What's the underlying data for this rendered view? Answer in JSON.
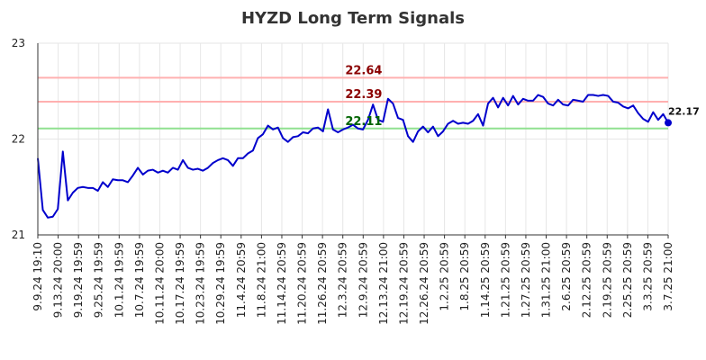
{
  "chart_data": {
    "type": "line",
    "title": "HYZD Long Term Signals",
    "xlabel": "",
    "ylabel": "",
    "ylim": [
      21,
      23
    ],
    "y_ticks": [
      "21",
      "22",
      "23"
    ],
    "x_tick_labels": [
      "9.9.24 19:10",
      "9.13.24 20:00",
      "9.19.24 19:59",
      "9.25.24 19:59",
      "10.1.24 19:59",
      "10.7.24 19:59",
      "10.11.24 20:00",
      "10.17.24 19:59",
      "10.23.24 19:59",
      "10.29.24 19:59",
      "11.4.24 20:59",
      "11.8.24 21:00",
      "11.14.24 20:59",
      "11.20.24 20:59",
      "11.26.24 20:59",
      "12.3.24 20:59",
      "12.9.24 20:59",
      "12.13.24 21:00",
      "12.19.24 20:59",
      "12.26.24 20:59",
      "1.2.25 20:59",
      "1.8.25 20:59",
      "1.14.25 20:59",
      "1.21.25 20:59",
      "1.27.25 20:59",
      "1.31.25 21:00",
      "2.6.25 20:59",
      "2.12.25 20:59",
      "2.19.25 20:59",
      "2.25.25 20:59",
      "3.3.25 20:59",
      "3.7.25 21:00"
    ],
    "grid": true,
    "line_color": "#0000cc",
    "series": [
      {
        "values": [
          21.8,
          21.26,
          21.18,
          21.19,
          21.27,
          21.87,
          21.36,
          21.44,
          21.49,
          21.5,
          21.49,
          21.49,
          21.46,
          21.55,
          21.5,
          21.58,
          21.57,
          21.57,
          21.55,
          21.62,
          21.7,
          21.63,
          21.67,
          21.68,
          21.65,
          21.67,
          21.65,
          21.7,
          21.68,
          21.78,
          21.7,
          21.68,
          21.69,
          21.67,
          21.7,
          21.75,
          21.78,
          21.8,
          21.78,
          21.72,
          21.8,
          21.8,
          21.85,
          21.88,
          22.01,
          22.05,
          22.14,
          22.1,
          22.12,
          22.01,
          21.97,
          22.02,
          22.03,
          22.07,
          22.06,
          22.11,
          22.12,
          22.08,
          22.31,
          22.1,
          22.07,
          22.1,
          22.12,
          22.15,
          22.11,
          22.1,
          22.2,
          22.36,
          22.2,
          22.18,
          22.42,
          22.37,
          22.22,
          22.2,
          22.03,
          21.97,
          22.08,
          22.13,
          22.07,
          22.13,
          22.03,
          22.08,
          22.16,
          22.19,
          22.16,
          22.17,
          22.16,
          22.19,
          22.26,
          22.14,
          22.37,
          22.43,
          22.33,
          22.43,
          22.35,
          22.45,
          22.36,
          22.42,
          22.4,
          22.4,
          22.46,
          22.44,
          22.37,
          22.35,
          22.41,
          22.36,
          22.35,
          22.41,
          22.4,
          22.39,
          22.46,
          22.46,
          22.45,
          22.46,
          22.45,
          22.39,
          22.38,
          22.34,
          22.32,
          22.35,
          22.27,
          22.21,
          22.18,
          22.28,
          22.2,
          22.26,
          22.17
        ]
      }
    ],
    "reference_lines": [
      {
        "value": 22.64,
        "label": "22.64",
        "line_color": "#ffb0b0",
        "label_color": "#8b0000"
      },
      {
        "value": 22.39,
        "label": "22.39",
        "line_color": "#ffb0b0",
        "label_color": "#8b0000"
      },
      {
        "value": 22.11,
        "label": "22.11",
        "line_color": "#90e090",
        "label_color": "#006400"
      }
    ],
    "last_value_label": "22.17"
  }
}
